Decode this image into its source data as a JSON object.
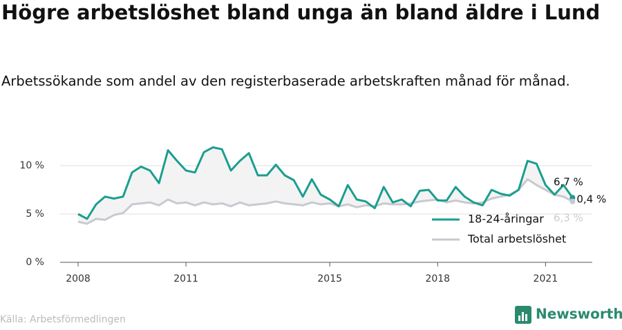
{
  "chart_data": {
    "type": "line",
    "title": "Högre arbetslöshet bland unga än bland äldre i Lund",
    "subtitle": "Arbetssökande som andel av den registerbaserade arbetskraften månad för månad.",
    "source": "Källa: Arbetsförmedlingen",
    "brand": "Newsworthy",
    "x": [
      2008,
      2008.25,
      2008.5,
      2008.75,
      2009,
      2009.25,
      2009.5,
      2009.75,
      2010,
      2010.25,
      2010.5,
      2010.75,
      2011,
      2011.25,
      2011.5,
      2011.75,
      2012,
      2012.25,
      2012.5,
      2012.75,
      2013,
      2013.25,
      2013.5,
      2013.75,
      2014,
      2014.25,
      2014.5,
      2014.75,
      2015,
      2015.25,
      2015.5,
      2015.75,
      2016,
      2016.25,
      2016.5,
      2016.75,
      2017,
      2017.25,
      2017.5,
      2017.75,
      2018,
      2018.25,
      2018.5,
      2018.75,
      2019,
      2019.25,
      2019.5,
      2019.75,
      2020,
      2020.25,
      2020.5,
      2020.75,
      2021,
      2021.25,
      2021.5,
      2021.75
    ],
    "series": [
      {
        "name": "18-24-åringar",
        "color": "#1a9e8f",
        "values": [
          5.0,
          4.5,
          6.0,
          6.8,
          6.6,
          6.8,
          9.3,
          9.9,
          9.5,
          8.2,
          11.6,
          10.5,
          9.5,
          9.3,
          11.4,
          11.9,
          11.7,
          9.5,
          10.5,
          11.3,
          9.0,
          9.0,
          10.1,
          9.0,
          8.5,
          6.8,
          8.6,
          7.0,
          6.5,
          5.8,
          8.0,
          6.5,
          6.3,
          5.6,
          7.8,
          6.2,
          6.5,
          5.8,
          7.4,
          7.5,
          6.4,
          6.4,
          7.8,
          6.8,
          6.2,
          5.9,
          7.5,
          7.1,
          6.9,
          7.5,
          10.5,
          10.2,
          8.0,
          7.0,
          8.0,
          6.7
        ],
        "value_labels": [
          null,
          null,
          null,
          null,
          null,
          null,
          null,
          null,
          null,
          null,
          null,
          null,
          null,
          null,
          null,
          null,
          null,
          null,
          null,
          null,
          null,
          null,
          null,
          null,
          null,
          null,
          null,
          null,
          null,
          null,
          null,
          null,
          null,
          null,
          null,
          null,
          null,
          null,
          null,
          null,
          null,
          null,
          null,
          null,
          null,
          null,
          null,
          null,
          null,
          null,
          null,
          null,
          null,
          null,
          null,
          "6,7 %"
        ]
      },
      {
        "name": "Total arbetslöshet",
        "color": "#c9c9d1",
        "values": [
          4.2,
          4.0,
          4.5,
          4.4,
          4.9,
          5.1,
          6.0,
          6.1,
          6.2,
          5.9,
          6.5,
          6.1,
          6.2,
          5.9,
          6.2,
          6.0,
          6.1,
          5.8,
          6.2,
          5.9,
          6.0,
          6.1,
          6.3,
          6.1,
          6.0,
          5.9,
          6.2,
          6.0,
          6.1,
          5.8,
          6.0,
          5.7,
          5.9,
          5.8,
          6.1,
          6.0,
          6.0,
          6.1,
          6.3,
          6.4,
          6.5,
          6.2,
          6.4,
          6.2,
          6.1,
          6.2,
          6.6,
          6.8,
          7.0,
          7.5,
          8.6,
          8.0,
          7.5,
          7.0,
          6.8,
          6.3
        ],
        "value_labels": [
          null,
          null,
          null,
          null,
          null,
          null,
          null,
          null,
          null,
          null,
          null,
          null,
          null,
          null,
          null,
          null,
          null,
          null,
          null,
          null,
          null,
          null,
          null,
          null,
          null,
          null,
          null,
          null,
          null,
          null,
          null,
          null,
          null,
          null,
          null,
          null,
          null,
          null,
          null,
          null,
          null,
          null,
          null,
          null,
          null,
          null,
          null,
          null,
          null,
          null,
          null,
          null,
          null,
          null,
          null,
          "6,3 %"
        ]
      }
    ],
    "gap_label": {
      "value": 0.4,
      "label": "0,4 %"
    },
    "xlim": [
      2007.5,
      2022.3
    ],
    "xticks": [
      2008,
      2011,
      2015,
      2018,
      2021
    ],
    "ylim": [
      0,
      12.5
    ],
    "yticks": [
      {
        "value": 0,
        "label": "0 %"
      },
      {
        "value": 5,
        "label": "5 %"
      },
      {
        "value": 10,
        "label": "10 %"
      }
    ],
    "grid": true
  }
}
